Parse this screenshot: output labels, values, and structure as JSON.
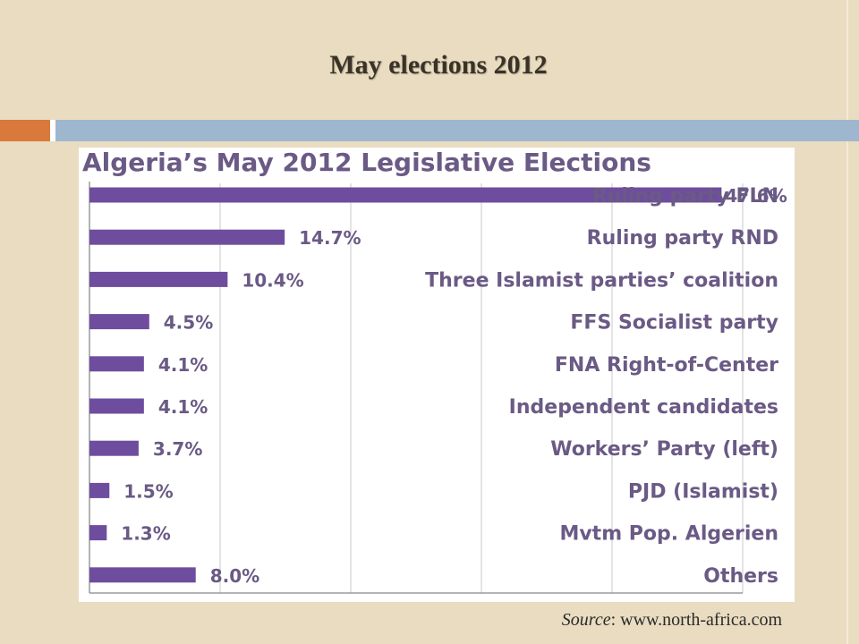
{
  "slide": {
    "title": "May elections 2012",
    "source_label": "Source",
    "source_rest": ": www.north-africa.com"
  },
  "chart_data": {
    "type": "bar",
    "orientation": "horizontal",
    "title": "Algeria’s May 2012 Legislative Elections",
    "categories": [
      "Ruling party FLN",
      "Ruling party RND",
      "Three Islamist parties’ coalition",
      "FFS Socialist party",
      "FNA Right-of-Center",
      "Independent candidates",
      "Workers’ Party (left)",
      "PJD (Islamist)",
      "Mvtm Pop. Algerien",
      "Others"
    ],
    "values": [
      47.6,
      14.7,
      10.4,
      4.5,
      4.1,
      4.1,
      3.7,
      1.5,
      1.3,
      8.0
    ],
    "value_labels": [
      "47.6%",
      "14.7%",
      "10.4%",
      "4.5%",
      "4.1%",
      "4.1%",
      "3.7%",
      "1.5%",
      "1.3%",
      "8.0%"
    ],
    "xlim": [
      0,
      50
    ],
    "bar_color": "#6e4d9e",
    "label_color": "#6a5a85",
    "grid": true,
    "xlabel": "",
    "ylabel": ""
  }
}
